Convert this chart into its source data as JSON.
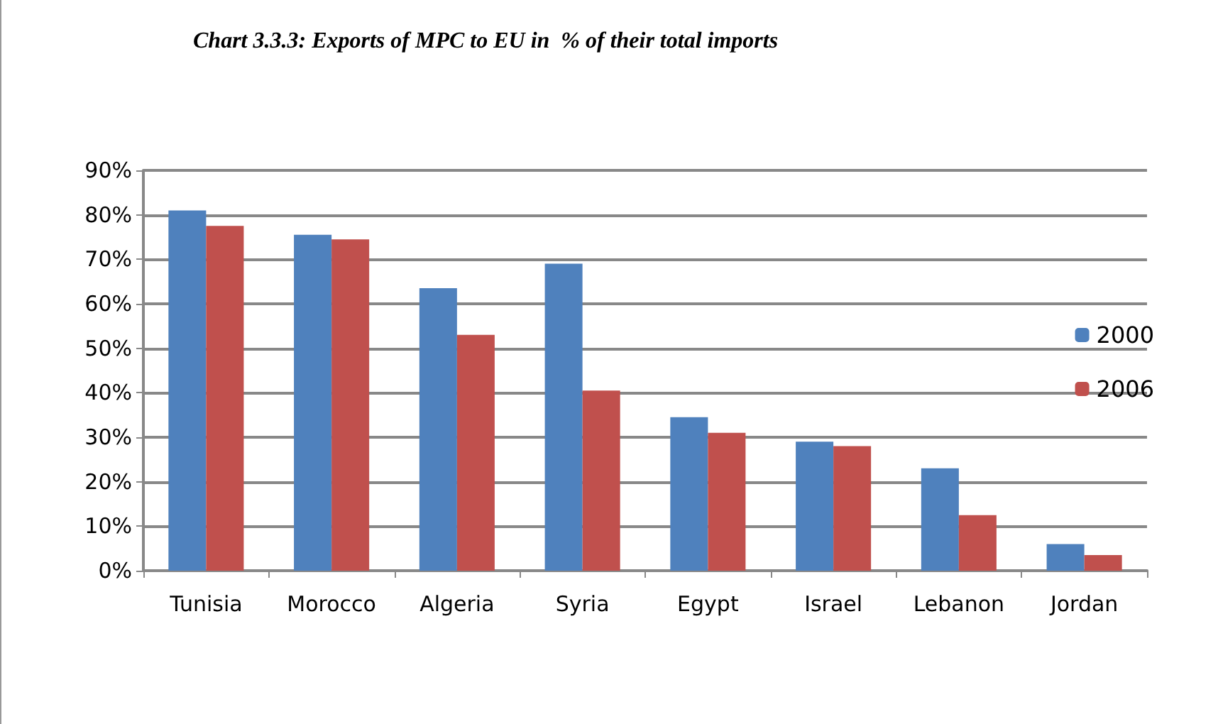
{
  "chart_data": {
    "type": "bar",
    "title": "Chart 3.3.3: Exports of MPC to EU in  % of their total imports",
    "categories": [
      "Tunisia",
      "Morocco",
      "Algeria",
      "Syria",
      "Egypt",
      "Israel",
      "Lebanon",
      "Jordan"
    ],
    "series": [
      {
        "name": "2000",
        "color": "#4f81bd",
        "values": [
          81,
          75.5,
          63.5,
          69,
          34.5,
          29,
          23,
          6
        ]
      },
      {
        "name": "2006",
        "color": "#c0504d",
        "values": [
          77.5,
          74.5,
          53,
          40.5,
          31,
          28,
          12.5,
          3.5
        ]
      }
    ],
    "ylim": [
      0,
      90
    ],
    "yticks": [
      {
        "value": 0,
        "label": "0%"
      },
      {
        "value": 10,
        "label": "10%"
      },
      {
        "value": 20,
        "label": "20%"
      },
      {
        "value": 30,
        "label": "30%"
      },
      {
        "value": 40,
        "label": "40%"
      },
      {
        "value": 50,
        "label": "50%"
      },
      {
        "value": 60,
        "label": "60%"
      },
      {
        "value": 70,
        "label": "70%"
      },
      {
        "value": 80,
        "label": "80%"
      },
      {
        "value": 90,
        "label": "90%"
      }
    ],
    "grid": "y",
    "legend": "right"
  }
}
